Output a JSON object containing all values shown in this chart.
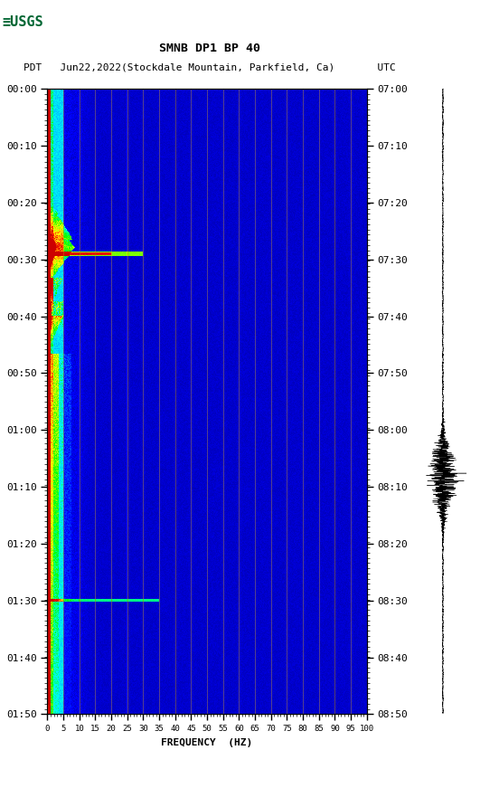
{
  "title_line1": "SMNB DP1 BP 40",
  "title_line2": "PDT   Jun22,2022(Stockdale Mountain, Parkfield, Ca)       UTC",
  "xlabel": "FREQUENCY  (HZ)",
  "time_left_labels": [
    "00:00",
    "00:10",
    "00:20",
    "00:30",
    "00:40",
    "00:50",
    "01:00",
    "01:10",
    "01:20",
    "01:30",
    "01:40",
    "01:50"
  ],
  "time_right_labels": [
    "07:00",
    "07:10",
    "07:20",
    "07:30",
    "07:40",
    "07:50",
    "08:00",
    "08:10",
    "08:20",
    "08:30",
    "08:40",
    "08:50"
  ],
  "background_color": "#ffffff",
  "usgs_green": "#006633",
  "n_time": 660,
  "n_freq": 400,
  "freq_max": 100
}
